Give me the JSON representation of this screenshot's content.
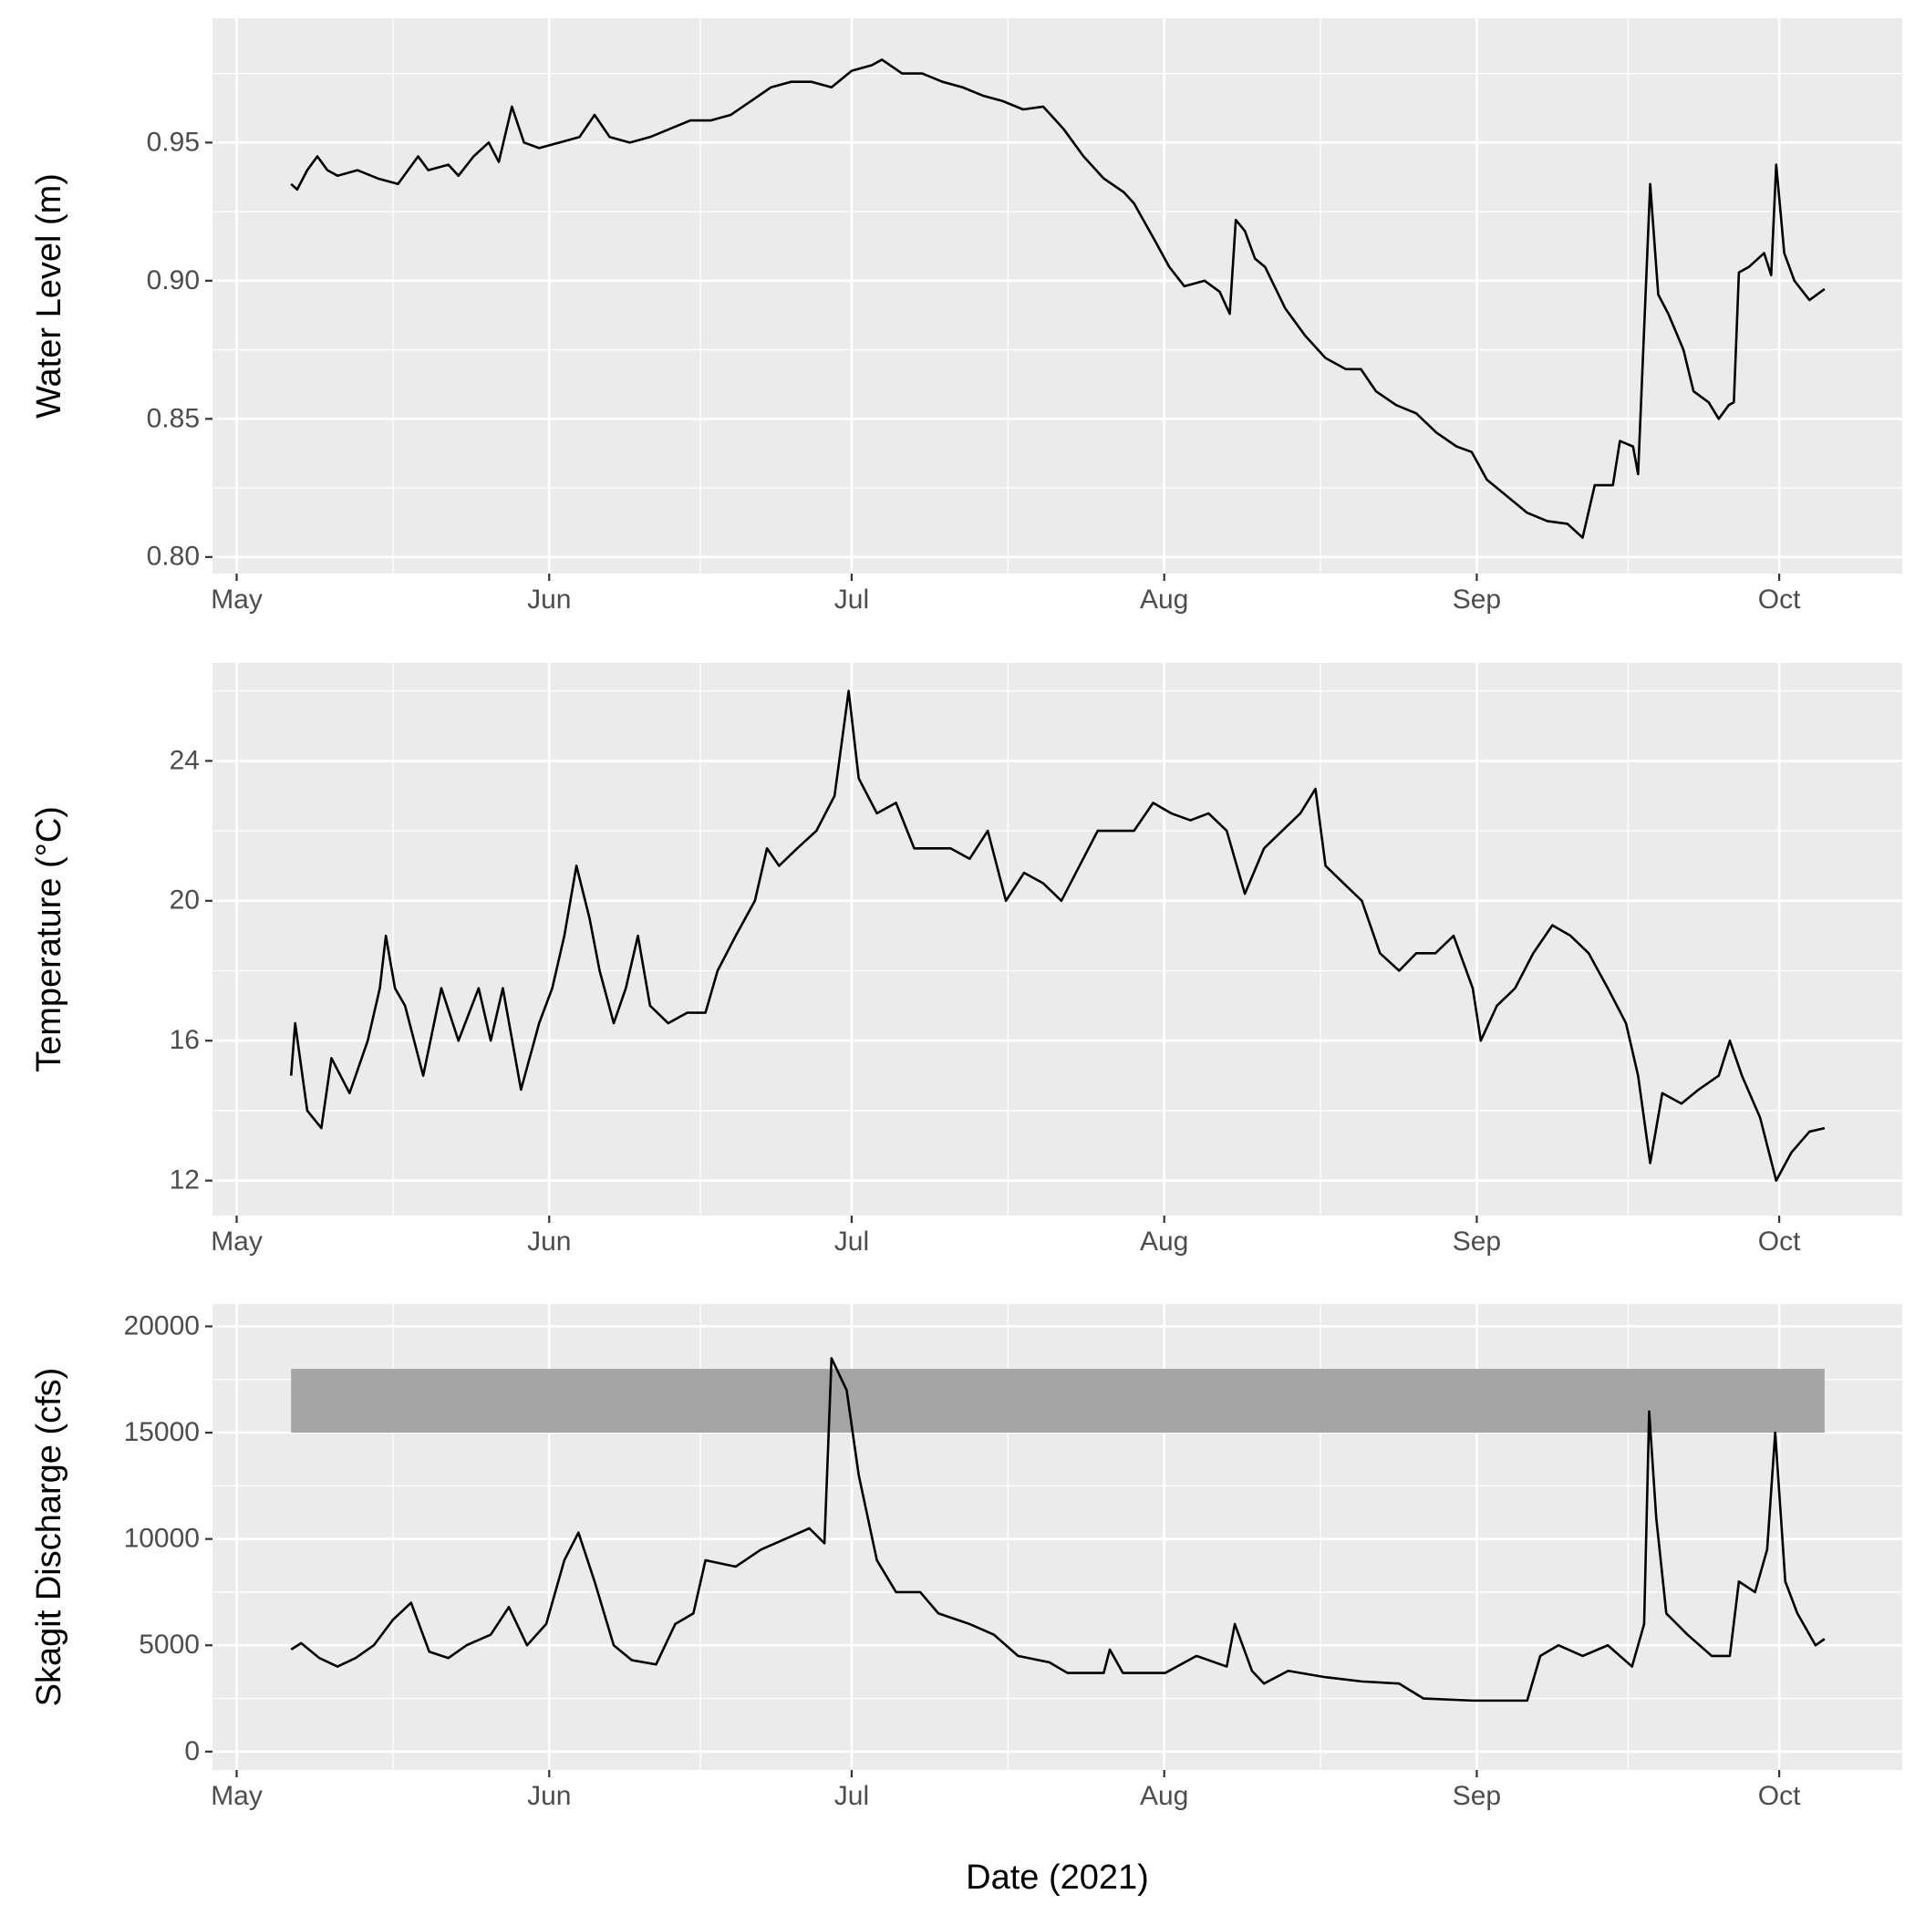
{
  "chart_data": [
    {
      "type": "line",
      "y_label": "Water Level (m)",
      "color": "#000000",
      "grid": true,
      "xlim": [
        -2.4,
        165.2
      ],
      "ylim": [
        0.794,
        0.995
      ],
      "xticks": [
        {
          "value": 0,
          "label": "May"
        },
        {
          "value": 31,
          "label": "Jun"
        },
        {
          "value": 61,
          "label": "Jul"
        },
        {
          "value": 92,
          "label": "Aug"
        },
        {
          "value": 123,
          "label": "Sep"
        },
        {
          "value": 153,
          "label": "Oct"
        }
      ],
      "yticks": [
        {
          "value": 0.8,
          "label": "0.80"
        },
        0.85,
        {
          "value": 0.9,
          "label": "0.90"
        },
        0.95
      ],
      "x": [
        5.4,
        6,
        7,
        8,
        9,
        10,
        12,
        14,
        16,
        17,
        18,
        19,
        21,
        22,
        23.5,
        25,
        26,
        27.3,
        28.5,
        30,
        32,
        34,
        35.5,
        37,
        39,
        41,
        43,
        45,
        47,
        49,
        51,
        53,
        55,
        57,
        59,
        61,
        63,
        64,
        66,
        68,
        70,
        72,
        74,
        76,
        78,
        80,
        82,
        84,
        86,
        88,
        89,
        91,
        92.5,
        94,
        96,
        97.5,
        98.5,
        99.1,
        100,
        101,
        102,
        104,
        106,
        108,
        110,
        111.5,
        113,
        115,
        117,
        119,
        121,
        122.5,
        124,
        126,
        128,
        130,
        132,
        133.5,
        134.7,
        136.5,
        137.2,
        138.5,
        139,
        140.2,
        141,
        142,
        143.5,
        144.5,
        146,
        147,
        148,
        148.5,
        149,
        150,
        151.5,
        152.2,
        152.7,
        153.5,
        154.5,
        156,
        157.5
      ],
      "values": [
        0.935,
        0.933,
        0.94,
        0.945,
        0.94,
        0.938,
        0.94,
        0.937,
        0.935,
        0.94,
        0.945,
        0.94,
        0.942,
        0.938,
        0.945,
        0.95,
        0.943,
        0.963,
        0.95,
        0.948,
        0.95,
        0.952,
        0.96,
        0.952,
        0.95,
        0.952,
        0.955,
        0.958,
        0.958,
        0.96,
        0.965,
        0.97,
        0.972,
        0.972,
        0.97,
        0.976,
        0.978,
        0.98,
        0.975,
        0.975,
        0.972,
        0.97,
        0.967,
        0.965,
        0.962,
        0.963,
        0.955,
        0.945,
        0.937,
        0.932,
        0.928,
        0.915,
        0.905,
        0.898,
        0.9,
        0.896,
        0.888,
        0.922,
        0.918,
        0.908,
        0.905,
        0.89,
        0.88,
        0.872,
        0.868,
        0.868,
        0.86,
        0.855,
        0.852,
        0.845,
        0.84,
        0.838,
        0.828,
        0.822,
        0.816,
        0.813,
        0.812,
        0.807,
        0.826,
        0.826,
        0.842,
        0.84,
        0.83,
        0.935,
        0.895,
        0.888,
        0.875,
        0.86,
        0.856,
        0.85,
        0.855,
        0.856,
        0.903,
        0.905,
        0.91,
        0.902,
        0.942,
        0.91,
        0.9,
        0.893,
        0.897
      ]
    },
    {
      "type": "line",
      "y_label": "Temperature (°C)",
      "color": "#000000",
      "grid": true,
      "xlim": [
        -2.4,
        165.2
      ],
      "ylim": [
        11,
        26.8
      ],
      "xticks": [
        {
          "value": 0,
          "label": "May"
        },
        {
          "value": 31,
          "label": "Jun"
        },
        {
          "value": 61,
          "label": "Jul"
        },
        {
          "value": 92,
          "label": "Aug"
        },
        {
          "value": 123,
          "label": "Sep"
        },
        {
          "value": 153,
          "label": "Oct"
        }
      ],
      "yticks": [
        12,
        16,
        20,
        24
      ],
      "x": [
        5.4,
        5.8,
        7,
        8.4,
        9.4,
        11.2,
        13,
        14.2,
        14.8,
        15.7,
        16.7,
        18.5,
        20.3,
        22,
        24,
        25.2,
        26.4,
        28.2,
        30,
        31.3,
        32.5,
        33.7,
        35,
        36,
        37.4,
        38.6,
        39.8,
        41,
        42.8,
        44.7,
        46.5,
        47.7,
        49.5,
        51.4,
        52.6,
        53.8,
        55.6,
        57.5,
        59.3,
        60.7,
        61.7,
        63.5,
        65.4,
        67.2,
        69,
        70.8,
        72.7,
        74.5,
        76.3,
        78.1,
        80,
        81.8,
        83.6,
        85.4,
        87.3,
        89,
        90.9,
        92.7,
        94.6,
        96.4,
        98.2,
        100,
        101.9,
        103.7,
        105.5,
        107,
        108,
        109.8,
        111.6,
        113.4,
        115.3,
        117,
        118.9,
        120.7,
        122.6,
        123.4,
        125,
        126.8,
        128.6,
        130.5,
        132.3,
        134.1,
        136,
        137.8,
        139,
        140.2,
        141.4,
        143.3,
        145,
        147,
        148.1,
        149.3,
        151.1,
        152.7,
        154.2,
        156,
        157.5
      ],
      "values": [
        15,
        16.5,
        14,
        13.5,
        15.5,
        14.5,
        16,
        17.5,
        19,
        17.5,
        17,
        15,
        17.5,
        16,
        17.5,
        16,
        17.5,
        14.6,
        16.5,
        17.5,
        19,
        21,
        19.5,
        18,
        16.5,
        17.5,
        19,
        17,
        16.5,
        16.8,
        16.8,
        18,
        19,
        20,
        21.5,
        21,
        21.5,
        22,
        23,
        26,
        23.5,
        22.5,
        22.8,
        21.5,
        21.5,
        21.5,
        21.2,
        22,
        20,
        20.8,
        20.5,
        20,
        21,
        22,
        22,
        22,
        22.8,
        22.5,
        22.3,
        22.5,
        22,
        20.2,
        21.5,
        22,
        22.5,
        23.2,
        21,
        20.5,
        20,
        18.5,
        18,
        18.5,
        18.5,
        19,
        17.5,
        16,
        17,
        17.5,
        18.5,
        19.3,
        19,
        18.5,
        17.5,
        16.5,
        15,
        12.5,
        14.5,
        14.2,
        14.6,
        15,
        16,
        15,
        13.8,
        12,
        12.8,
        13.4,
        13.5
      ]
    },
    {
      "type": "line",
      "y_label": "Skagit Discharge (cfs)",
      "x_label": "Date (2021)",
      "color": "#000000",
      "grid": true,
      "xlim": [
        -2.4,
        165.2
      ],
      "ylim": [
        -865,
        21050
      ],
      "xticks": [
        {
          "value": 0,
          "label": "May"
        },
        {
          "value": 31,
          "label": "Jun"
        },
        {
          "value": 61,
          "label": "Jul"
        },
        {
          "value": 92,
          "label": "Aug"
        },
        {
          "value": 123,
          "label": "Sep"
        },
        {
          "value": 153,
          "label": "Oct"
        }
      ],
      "yticks": [
        0,
        5000,
        10000,
        15000,
        20000
      ],
      "shaded_band": {
        "x": [
          5.4,
          157.5
        ],
        "y": [
          15000,
          18000
        ],
        "color": "#a0a0a0"
      },
      "x": [
        5.4,
        6.4,
        8.2,
        10,
        11.8,
        13.6,
        15.5,
        17.3,
        19.1,
        21,
        22.8,
        25.2,
        27,
        28.8,
        30.7,
        32.5,
        33.9,
        35.5,
        37.4,
        39.2,
        41.6,
        43.5,
        45.3,
        46.5,
        49.5,
        52,
        54.4,
        56.8,
        58.3,
        59,
        60.5,
        61.7,
        63.5,
        65.4,
        67.8,
        69.6,
        72.7,
        75.1,
        77.5,
        80.6,
        82.4,
        86,
        86.6,
        87.9,
        92.1,
        95.2,
        98.2,
        99,
        100.7,
        101.9,
        104.3,
        108,
        111.6,
        115.3,
        117.7,
        122.6,
        128,
        129.3,
        131.1,
        133.5,
        136,
        138.4,
        139.6,
        140.1,
        140.8,
        141.8,
        143.9,
        146.3,
        148.1,
        149,
        150.6,
        151.8,
        152.6,
        153.6,
        154.8,
        156.6,
        157.5
      ],
      "values": [
        4800,
        5100,
        4400,
        4000,
        4400,
        5000,
        6200,
        7000,
        4700,
        4400,
        5000,
        5500,
        6800,
        5000,
        6000,
        9000,
        10300,
        8000,
        5000,
        4300,
        4100,
        6000,
        6500,
        9000,
        8700,
        9500,
        10000,
        10500,
        9800,
        18500,
        17000,
        13000,
        9000,
        7500,
        7500,
        6500,
        6000,
        5500,
        4500,
        4200,
        3700,
        3700,
        4800,
        3700,
        3700,
        4500,
        4000,
        6000,
        3800,
        3200,
        3800,
        3500,
        3300,
        3200,
        2500,
        2400,
        2400,
        4500,
        5000,
        4500,
        5000,
        4000,
        6000,
        16000,
        11000,
        6500,
        5500,
        4500,
        4500,
        8000,
        7500,
        9500,
        15000,
        8000,
        6500,
        5000,
        5300
      ]
    }
  ]
}
